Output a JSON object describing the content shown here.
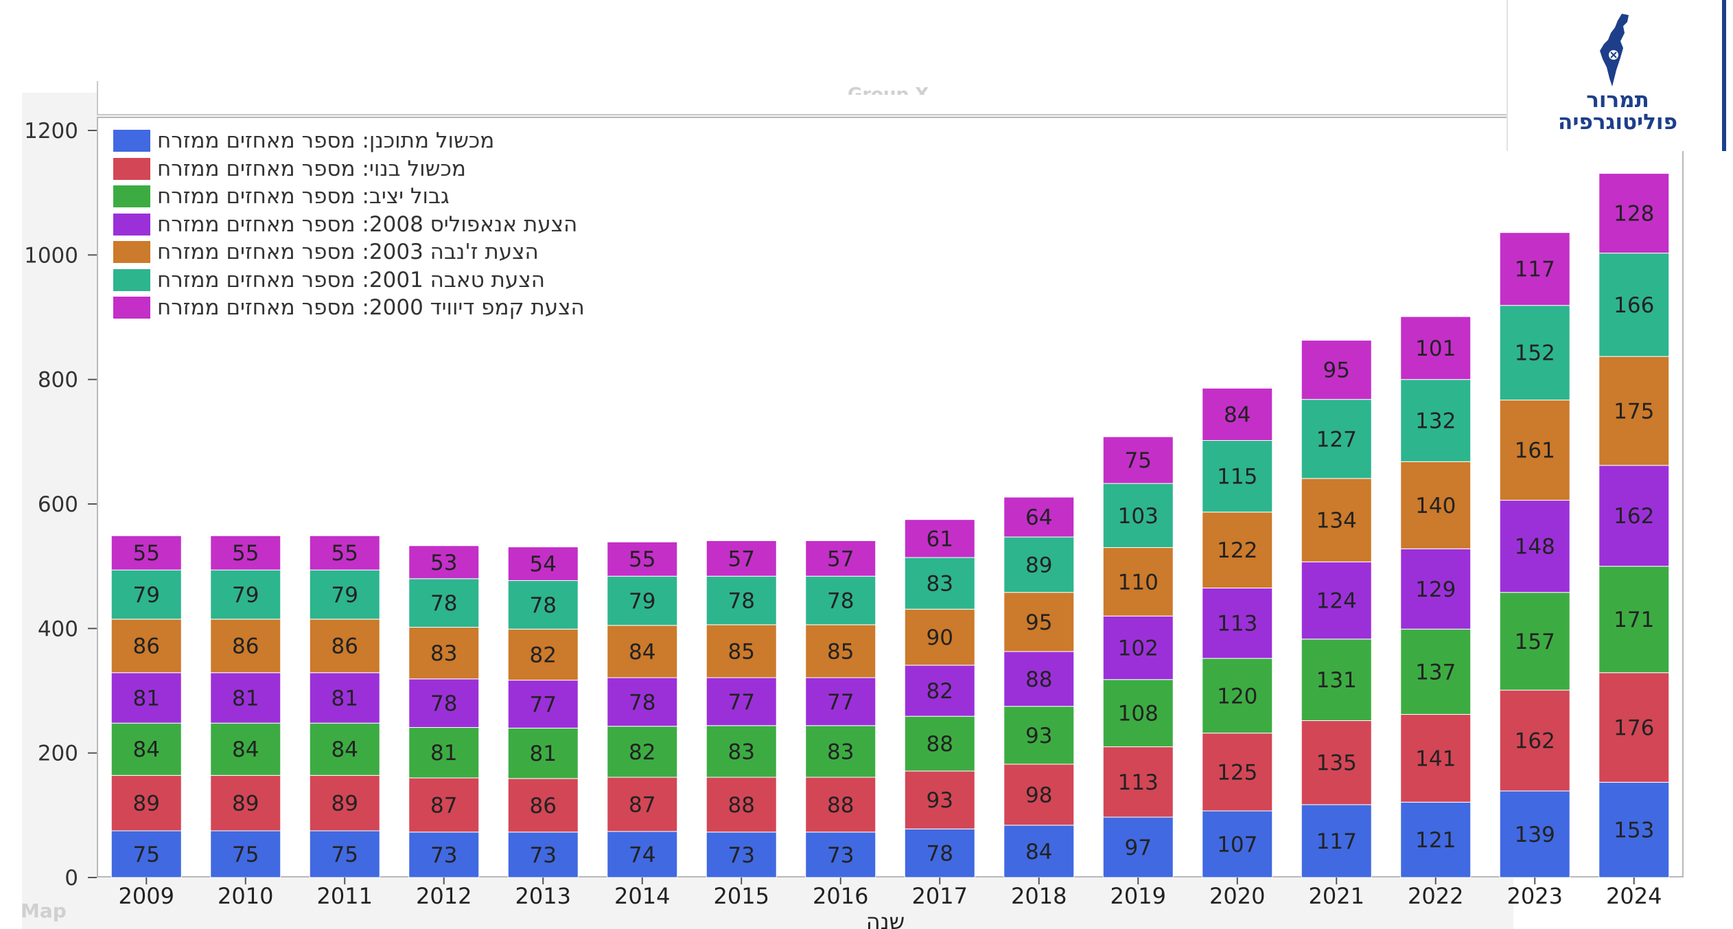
{
  "logo": {
    "line1": "תמרור",
    "line2": "פוליטוגרפיה",
    "colors": {
      "primary": "#1d3f8a"
    },
    "icon": "israel-map-icon"
  },
  "faint_labels": {
    "group": "Group X",
    "map": "Map"
  },
  "chart_data": {
    "type": "bar",
    "stacked": true,
    "categories": [
      "2009",
      "2010",
      "2011",
      "2012",
      "2013",
      "2014",
      "2015",
      "2016",
      "2017",
      "2018",
      "2019",
      "2020",
      "2021",
      "2022",
      "2023",
      "2024"
    ],
    "xlabel": "שנה",
    "ylabel": "",
    "ylim": [
      0,
      1200
    ],
    "yticks": [
      0,
      200,
      400,
      600,
      800,
      1000,
      1200
    ],
    "grid": false,
    "legend_position": "top-left",
    "series": [
      {
        "name": "מכשול מתוכנן: מספר מאחזים ממזרח",
        "color": "#4169e1",
        "values": [
          75,
          75,
          75,
          73,
          73,
          74,
          73,
          73,
          78,
          84,
          97,
          107,
          117,
          121,
          139,
          153
        ]
      },
      {
        "name": "מכשול בנוי: מספר מאחזים ממזרח",
        "color": "#d34656",
        "values": [
          89,
          89,
          89,
          87,
          86,
          87,
          88,
          88,
          93,
          98,
          113,
          125,
          135,
          141,
          162,
          176
        ]
      },
      {
        "name": "גבול יציב: מספר מאחזים ממזרח",
        "color": "#3cac42",
        "values": [
          84,
          84,
          84,
          81,
          81,
          82,
          83,
          83,
          88,
          93,
          108,
          120,
          131,
          137,
          157,
          171
        ]
      },
      {
        "name": "הצעת אנאפוליס 2008: מספר מאחזים ממזרח",
        "color": "#9b30d9",
        "values": [
          81,
          81,
          81,
          78,
          77,
          78,
          77,
          77,
          82,
          88,
          102,
          113,
          124,
          129,
          148,
          162
        ]
      },
      {
        "name": "הצעת ז'נבה 2003: מספר מאחזים ממזרח",
        "color": "#cc7a2b",
        "values": [
          86,
          86,
          86,
          83,
          82,
          84,
          85,
          85,
          90,
          95,
          110,
          122,
          134,
          140,
          161,
          175
        ]
      },
      {
        "name": "הצעת טאבה 2001: מספר מאחזים ממזרח",
        "color": "#2db58e",
        "values": [
          79,
          79,
          79,
          78,
          78,
          79,
          78,
          78,
          83,
          89,
          103,
          115,
          127,
          132,
          152,
          166
        ]
      },
      {
        "name": "הצעת קמפ דיוויד 2000: מספר מאחזים ממזרח",
        "color": "#c42fc8",
        "values": [
          55,
          55,
          55,
          53,
          54,
          55,
          57,
          57,
          61,
          64,
          75,
          84,
          95,
          101,
          117,
          128
        ]
      }
    ]
  }
}
